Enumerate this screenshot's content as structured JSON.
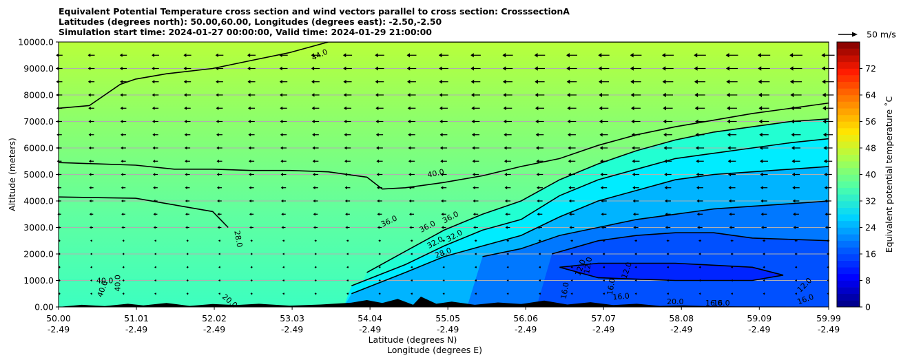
{
  "chart_data": {
    "type": "heatmap",
    "title_lines": [
      "Equivalent Potential Temperature cross section and wind vectors parallel to cross section: CrosssectionA",
      "Latitudes (degrees north): 50.00,60.00, Longitudes (degrees east): -2.50,-2.50",
      "Simulation start time: 2024-01-27 00:00:00, Valid time: 2024-01-29 21:00:00"
    ],
    "ylabel": "Altitude (meters)",
    "xlabel_lat": "Latitude (degrees N)",
    "xlabel_lon": "Longitude (degrees E)",
    "ylim": [
      0,
      10000
    ],
    "y_ticks": [
      "0.00",
      "1000.0",
      "2000.0",
      "3000.0",
      "4000.0",
      "5000.0",
      "6000.0",
      "7000.0",
      "8000.0",
      "9000.0",
      "10000.0"
    ],
    "x_ticks_lat": [
      "50.00",
      "51.01",
      "52.02",
      "53.03",
      "54.04",
      "55.05",
      "56.06",
      "57.07",
      "58.08",
      "59.09",
      "59.99"
    ],
    "x_ticks_lon": [
      "-2.49",
      "-2.49",
      "-2.49",
      "-2.49",
      "-2.49",
      "-2.49",
      "-2.49",
      "-2.49",
      "-2.49",
      "-2.49",
      "-2.49"
    ],
    "grid": "horizontal",
    "colorbar": {
      "label": "Equivalent potential temperature ˚C",
      "ticks": [
        "0",
        "8",
        "16",
        "24",
        "32",
        "40",
        "48",
        "56",
        "64",
        "72"
      ],
      "range": [
        0,
        80
      ],
      "colormap": "jet"
    },
    "wind_key": "50 m/s",
    "contour_labels": [
      "44.0",
      "40.0",
      "36.0",
      "36.0",
      "36.0",
      "32.0",
      "32.0",
      "28.0",
      "12.0",
      "12.0",
      "16.0",
      "16.0",
      "16.0",
      "12.0",
      "16.0",
      "16.0",
      "40.0",
      "40.0",
      "40.0",
      "28.0",
      "12.0",
      "16.0",
      "20.0",
      "20.0"
    ],
    "contours": [
      {
        "level": 44,
        "x": [
          50.0,
          50.4,
          50.8,
          51.0,
          51.4,
          52.0,
          52.5,
          53.0,
          53.5,
          55.0,
          57.0,
          60.0
        ],
        "y": [
          7500,
          7600,
          8400,
          8600,
          8800,
          9000,
          9300,
          9600,
          10000,
          10000,
          10000,
          10000
        ]
      },
      {
        "level": 40,
        "x": [
          50.0,
          50.5,
          51.0,
          51.5,
          52.0,
          52.5,
          53.0,
          53.5,
          54.0,
          54.2,
          54.5,
          55.0,
          55.5,
          56.0,
          56.5,
          57.0,
          57.5,
          58.0,
          58.5,
          59.0,
          59.5,
          60.0
        ],
        "y": [
          5450,
          5400,
          5350,
          5200,
          5200,
          5150,
          5150,
          5100,
          4900,
          4450,
          4500,
          4700,
          4950,
          5300,
          5600,
          6100,
          6500,
          6800,
          7050,
          7300,
          7500,
          7700
        ]
      },
      {
        "level": 40,
        "x": [
          50.0,
          51.0,
          52.0,
          52.2
        ],
        "y": [
          4150,
          4100,
          3600,
          3000
        ]
      },
      {
        "level": 36,
        "x": [
          54.0,
          54.5,
          55.0,
          55.5,
          56.0,
          56.5,
          57.0,
          57.5,
          58.0,
          58.5,
          59.0,
          59.5,
          60.0
        ],
        "y": [
          1300,
          2100,
          2900,
          3500,
          4000,
          4800,
          5400,
          5900,
          6300,
          6600,
          6800,
          7000,
          7100
        ]
      },
      {
        "level": 32,
        "x": [
          53.8,
          54.5,
          55.0,
          55.5,
          56.0,
          56.5,
          57.0,
          57.5,
          58.0,
          58.5,
          59.0,
          59.5,
          60.0
        ],
        "y": [
          800,
          1600,
          2300,
          2900,
          3300,
          4200,
          4800,
          5200,
          5600,
          5800,
          6000,
          6200,
          6350
        ]
      },
      {
        "level": 28,
        "x": [
          53.8,
          54.5,
          55.0,
          55.5,
          56.0,
          56.5,
          57.0,
          57.5,
          58.0,
          58.5,
          59.0,
          59.5,
          60.0
        ],
        "y": [
          500,
          1300,
          1900,
          2300,
          2700,
          3400,
          4000,
          4400,
          4800,
          5000,
          5100,
          5200,
          5300
        ]
      },
      {
        "level": 20,
        "x": [
          55.5,
          56.0,
          56.5,
          57.0,
          57.5,
          58.0,
          58.5,
          59.0,
          59.5,
          60.0
        ],
        "y": [
          1900,
          2200,
          2700,
          3000,
          3300,
          3500,
          3700,
          3800,
          3900,
          4000
        ]
      },
      {
        "level": 16,
        "x": [
          56.4,
          57.0,
          57.5,
          58.0,
          58.5,
          59.0,
          59.5,
          60.0
        ],
        "y": [
          2000,
          2500,
          2700,
          2800,
          2800,
          2600,
          2550,
          2500
        ]
      },
      {
        "level": 12,
        "x": [
          56.5,
          57.0,
          58.0,
          59.0,
          59.4,
          59.0,
          58.0,
          57.0,
          56.5
        ],
        "y": [
          1500,
          1650,
          1650,
          1500,
          1200,
          1000,
          1000,
          1100,
          1500
        ]
      }
    ]
  }
}
